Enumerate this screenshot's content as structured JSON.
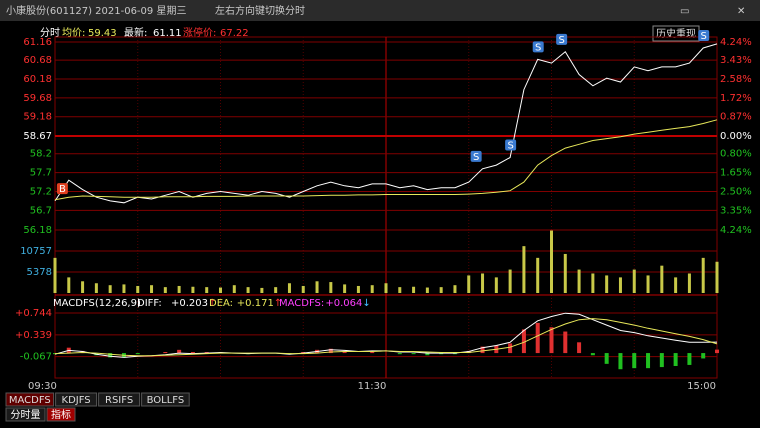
{
  "window": {
    "title": "小康股份(601127) 2021-06-09 星期三",
    "hint": "左右方向键切换分时"
  },
  "header": {
    "mode": "分时",
    "avg_label": "均价:",
    "avg": "59.43",
    "last_label": "最新:",
    "last": "61.11",
    "limit_label": "涨停价:",
    "limit": "67.22",
    "button": "历史重现"
  },
  "price_chart": {
    "type": "line",
    "ylim": [
      56.18,
      61.16
    ],
    "yticks": [
      61.16,
      60.68,
      60.18,
      59.68,
      59.18,
      58.67,
      58.2,
      57.7,
      57.2,
      56.7,
      56.18
    ],
    "y2lim": [
      -4.24,
      4.24
    ],
    "y2ticks": [
      {
        "value": 4.24,
        "label": "4.24%"
      },
      {
        "value": 3.43,
        "label": "3.43%"
      },
      {
        "value": 2.58,
        "label": "2.58%"
      },
      {
        "value": 1.72,
        "label": "1.72%"
      },
      {
        "value": 0.87,
        "label": "0.87%"
      },
      {
        "value": 0,
        "label": "0.00%"
      },
      {
        "value": -0.8,
        "label": "0.80%"
      },
      {
        "value": -1.65,
        "label": "1.65%"
      },
      {
        "value": -2.5,
        "label": "2.50%"
      },
      {
        "value": -3.35,
        "label": "3.35%"
      },
      {
        "value": -4.24,
        "label": "4.24%"
      }
    ],
    "series": [
      {
        "color": "#ffffff",
        "values": [
          56.95,
          57.5,
          57.25,
          57.05,
          56.95,
          56.9,
          57.05,
          57.0,
          57.1,
          57.2,
          57.05,
          57.15,
          57.2,
          57.15,
          57.1,
          57.2,
          57.15,
          57.05,
          57.2,
          57.35,
          57.45,
          57.35,
          57.3,
          57.4,
          57.4,
          57.3,
          57.35,
          57.25,
          57.3,
          57.3,
          57.45,
          57.8,
          57.9,
          58.1,
          59.9,
          60.7,
          60.6,
          60.9,
          60.3,
          60.0,
          60.2,
          60.1,
          60.5,
          60.4,
          60.5,
          60.5,
          60.6,
          61.0,
          61.11
        ]
      },
      {
        "color": "#e8e85a",
        "values": [
          56.98,
          57.05,
          57.08,
          57.07,
          57.06,
          57.05,
          57.05,
          57.05,
          57.06,
          57.06,
          57.06,
          57.07,
          57.07,
          57.07,
          57.08,
          57.08,
          57.08,
          57.08,
          57.08,
          57.09,
          57.1,
          57.1,
          57.11,
          57.11,
          57.12,
          57.12,
          57.12,
          57.12,
          57.12,
          57.12,
          57.13,
          57.15,
          57.18,
          57.22,
          57.45,
          57.9,
          58.15,
          58.35,
          58.45,
          58.55,
          58.6,
          58.65,
          58.72,
          58.77,
          58.82,
          58.87,
          58.92,
          59.0,
          59.1
        ]
      }
    ],
    "markers": [
      "B",
      "S",
      "S",
      "S",
      "S",
      "S"
    ]
  },
  "volume": {
    "type": "bar",
    "ylim": [
      0,
      16136
    ],
    "yticks": [
      5378,
      10757
    ],
    "color": "#c8c848",
    "values": [
      9000,
      4000,
      3000,
      2500,
      2000,
      2200,
      1800,
      2000,
      1500,
      1800,
      1600,
      1500,
      1400,
      2000,
      1500,
      1300,
      1500,
      2500,
      1800,
      3000,
      2800,
      2200,
      1800,
      2000,
      2500,
      1500,
      1600,
      1400,
      1500,
      2000,
      4500,
      5000,
      4000,
      6000,
      12000,
      9000,
      16000,
      10000,
      6000,
      5000,
      4500,
      4000,
      6000,
      4500,
      7000,
      4000,
      5000,
      9000,
      8000
    ]
  },
  "macd": {
    "type": "line",
    "title": "MACDFS(12,26,9)",
    "stats": [
      {
        "label": "DIFF:",
        "value": "+0.203",
        "arrow": "↑"
      },
      {
        "label": "DEA:",
        "value": "+0.171",
        "arrow": "↑"
      },
      {
        "label": "MACDFS:",
        "value": "+0.064",
        "arrow": "↓"
      }
    ],
    "ylim": [
      -0.5,
      0.8
    ],
    "yticks": [
      {
        "value": 0.744,
        "label": "+0.744"
      },
      {
        "value": 0.339,
        "label": "+0.339"
      },
      -0.067
    ],
    "series": [
      {
        "color": "#ffffff",
        "values": [
          -0.02,
          0.05,
          0.03,
          -0.02,
          -0.06,
          -0.08,
          -0.06,
          -0.05,
          -0.03,
          0.0,
          -0.01,
          0.0,
          0.01,
          0.0,
          -0.01,
          0.0,
          0.0,
          -0.02,
          0.0,
          0.03,
          0.06,
          0.05,
          0.03,
          0.04,
          0.04,
          0.02,
          0.02,
          0.0,
          0.0,
          0.0,
          0.03,
          0.1,
          0.14,
          0.2,
          0.42,
          0.6,
          0.68,
          0.74,
          0.72,
          0.62,
          0.52,
          0.42,
          0.38,
          0.32,
          0.28,
          0.24,
          0.2,
          0.2,
          0.203
        ]
      },
      {
        "color": "#e8e85a",
        "values": [
          -0.01,
          0.0,
          0.01,
          0.0,
          -0.02,
          -0.04,
          -0.05,
          -0.05,
          -0.04,
          -0.03,
          -0.02,
          -0.01,
          0.0,
          0.0,
          0.0,
          0.0,
          0.0,
          -0.01,
          -0.01,
          0.0,
          0.02,
          0.03,
          0.03,
          0.03,
          0.04,
          0.03,
          0.03,
          0.02,
          0.01,
          0.01,
          0.01,
          0.04,
          0.07,
          0.11,
          0.2,
          0.32,
          0.44,
          0.54,
          0.62,
          0.64,
          0.62,
          0.57,
          0.52,
          0.46,
          0.41,
          0.36,
          0.31,
          0.25,
          0.171
        ]
      }
    ],
    "hist": [
      -0.02,
      0.1,
      0.04,
      -0.04,
      -0.08,
      -0.08,
      -0.02,
      0.0,
      0.02,
      0.06,
      0.02,
      0.02,
      0.02,
      0,
      -0.02,
      0,
      0,
      -0.02,
      0.02,
      0.06,
      0.08,
      0.04,
      0,
      0.02,
      0,
      -0.02,
      -0.02,
      -0.04,
      -0.02,
      -0.02,
      0.04,
      0.12,
      0.14,
      0.18,
      0.44,
      0.56,
      0.48,
      0.4,
      0.2,
      -0.04,
      -0.2,
      -0.3,
      -0.28,
      -0.28,
      -0.26,
      -0.24,
      -0.22,
      -0.1,
      0.064
    ]
  },
  "time_axis": {
    "ticks": [
      "09:30",
      "11:30",
      "15:00"
    ]
  },
  "tabs": [
    "MACDFS",
    "KDJFS",
    "RSIFS",
    "BOLLFS"
  ],
  "bottom_tabs": [
    "分时量",
    "指标"
  ]
}
